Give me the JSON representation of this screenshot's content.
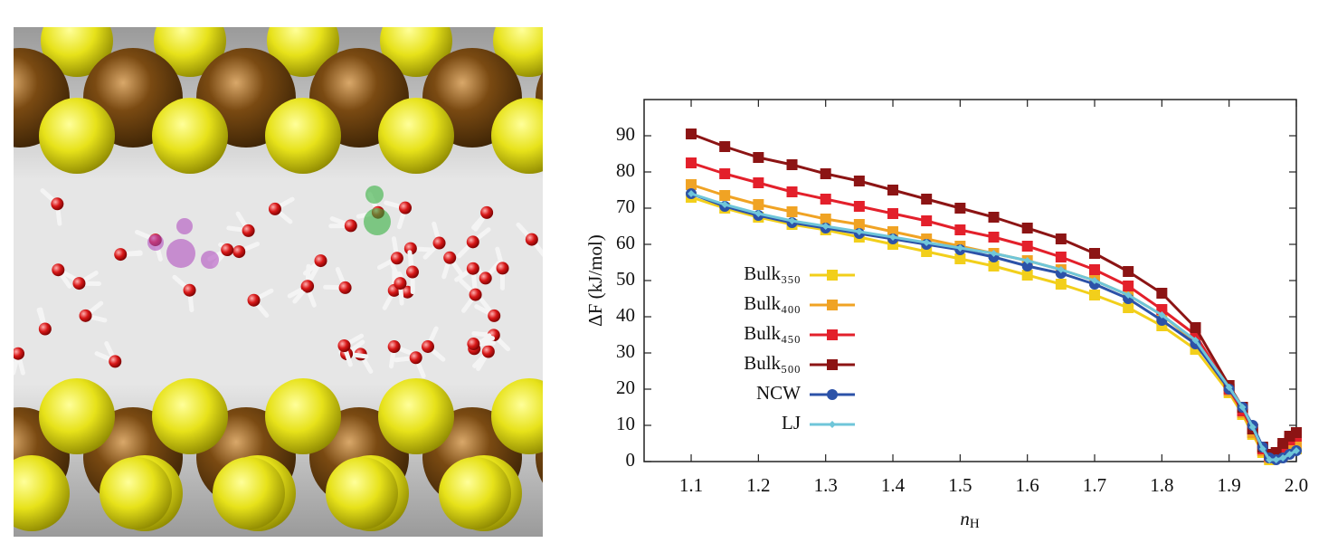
{
  "chart_data": {
    "type": "line",
    "ylabel": "ΔF (kJ/mol)",
    "xlabel": {
      "text": "n",
      "subscript": "H"
    },
    "x": [
      1.1,
      1.15,
      1.2,
      1.25,
      1.3,
      1.35,
      1.4,
      1.45,
      1.5,
      1.55,
      1.6,
      1.65,
      1.7,
      1.75,
      1.8,
      1.85,
      1.9,
      1.92,
      1.935,
      1.95,
      1.96,
      1.97,
      1.98,
      1.99,
      2.0
    ],
    "series": [
      {
        "name": "Bulk₃₅₀",
        "color": "#f2cf1b",
        "marker": "square",
        "values": [
          73,
          70,
          67.5,
          65.5,
          64,
          62,
          60,
          58,
          56,
          54,
          51.5,
          49,
          46,
          42.5,
          37.5,
          31,
          19,
          13,
          7.5,
          2.5,
          0.5,
          1,
          2,
          3,
          3.5
        ]
      },
      {
        "name": "Bulk₄₀₀",
        "color": "#f0a324",
        "marker": "square",
        "values": [
          76.5,
          73.5,
          71,
          69,
          67,
          65.5,
          63.5,
          61.5,
          59.5,
          57.5,
          55.5,
          53,
          50,
          46,
          40.5,
          33,
          19.5,
          13.5,
          8,
          3,
          1,
          1.5,
          3,
          4.5,
          5
        ]
      },
      {
        "name": "Bulk₄₅₀",
        "color": "#e3202b",
        "marker": "square",
        "values": [
          82.5,
          79.5,
          77,
          74.5,
          72.5,
          70.5,
          68.5,
          66.5,
          64,
          62,
          59.5,
          56.5,
          53,
          48.5,
          42,
          35,
          20,
          14,
          9,
          3.5,
          1.5,
          2,
          4,
          6,
          7
        ]
      },
      {
        "name": "Bulk₅₀₀",
        "color": "#8c1414",
        "marker": "square",
        "values": [
          90.5,
          87,
          84,
          82,
          79.5,
          77.5,
          75,
          72.5,
          70,
          67.5,
          64.5,
          61.5,
          57.5,
          52.5,
          46.5,
          37,
          21,
          15,
          9,
          4,
          2,
          2.5,
          5,
          7,
          8
        ]
      },
      {
        "name": "NCW",
        "color": "#2c52a8",
        "marker": "circle",
        "values": [
          74,
          70.5,
          68,
          66,
          64.5,
          63,
          61.5,
          60,
          58.5,
          56.5,
          54,
          52,
          49,
          45,
          39,
          32.5,
          20,
          15,
          10,
          4,
          1,
          0.5,
          1,
          2,
          3
        ]
      },
      {
        "name": "LJ",
        "color": "#6fc6d9",
        "marker": "diamond",
        "values": [
          74,
          71,
          68.5,
          66.5,
          65,
          63.5,
          62,
          60.5,
          59,
          57.5,
          55.5,
          53,
          50,
          46,
          40.5,
          33.5,
          20.5,
          15,
          9.5,
          3.5,
          0.5,
          0.5,
          1,
          2,
          3
        ]
      }
    ],
    "xlim": [
      1.03,
      2.0
    ],
    "xticks": [
      1.1,
      1.2,
      1.3,
      1.4,
      1.5,
      1.6,
      1.7,
      1.8,
      1.9,
      {
        "value": 2,
        "label": "2.0"
      }
    ],
    "ylim": [
      0,
      100
    ],
    "yticks": [
      0,
      10,
      20,
      30,
      40,
      50,
      60,
      70,
      80,
      90
    ],
    "grid": false,
    "legend": "center-left"
  }
}
